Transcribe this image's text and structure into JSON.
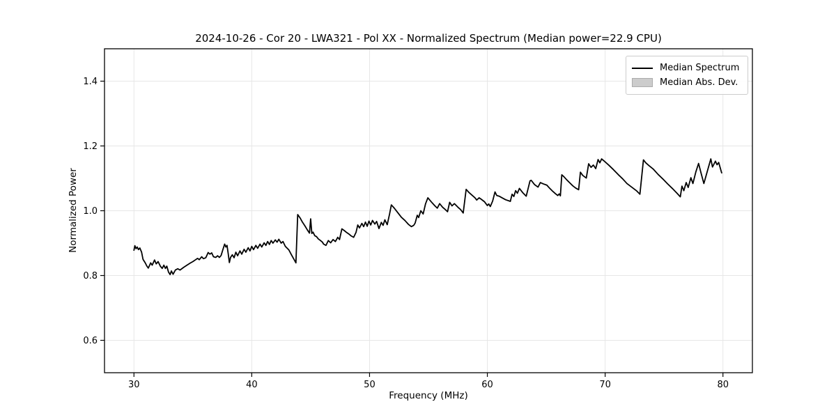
{
  "title": "2024-10-26 - Cor 20 - LWA321 - Pol XX - Normalized Spectrum (Median power=22.9 CPU)",
  "legend": {
    "items": [
      {
        "label": "Median Spectrum",
        "swatch": "line",
        "color": "#000000"
      },
      {
        "label": "Median Abs. Dev.",
        "swatch": "patch",
        "color": "#cccccc"
      }
    ]
  },
  "colors": {
    "line": "#000000",
    "grid": "#e6e6e6",
    "frame": "#000000",
    "legend_border": "#cccccc",
    "mad_fill": "#cccccc"
  },
  "chart_data": {
    "type": "line",
    "title": "2024-10-26 - Cor 20 - LWA321 - Pol XX - Normalized Spectrum (Median power=22.9 CPU)",
    "xlabel": "Frequency (MHz)",
    "ylabel": "Normalized Power",
    "xlim": [
      27.5,
      82.5
    ],
    "ylim": [
      0.5,
      1.5
    ],
    "xticks": [
      30,
      40,
      50,
      60,
      70,
      80
    ],
    "yticks": [
      0.6,
      0.8,
      1.0,
      1.2,
      1.4
    ],
    "grid": true,
    "legend_position": "upper right",
    "series": [
      {
        "name": "Median Spectrum",
        "color": "#000000",
        "x": [
          30.0,
          30.08,
          30.18,
          30.28,
          30.38,
          30.5,
          30.65,
          30.77,
          30.96,
          31.1,
          31.22,
          31.42,
          31.55,
          31.75,
          31.89,
          32.05,
          32.24,
          32.4,
          32.54,
          32.67,
          32.79,
          32.93,
          33.07,
          33.18,
          33.32,
          33.52,
          33.72,
          33.91,
          34.21,
          34.5,
          34.8,
          35.0,
          35.2,
          35.4,
          35.55,
          35.75,
          35.9,
          36.1,
          36.3,
          36.45,
          36.6,
          36.75,
          36.95,
          37.1,
          37.25,
          37.4,
          37.55,
          37.7,
          37.8,
          37.9,
          38.0,
          38.1,
          38.2,
          38.35,
          38.5,
          38.65,
          38.8,
          39.0,
          39.15,
          39.35,
          39.5,
          39.7,
          39.85,
          40.0,
          40.15,
          40.35,
          40.5,
          40.7,
          40.85,
          41.05,
          41.2,
          41.35,
          41.5,
          41.65,
          41.8,
          42.0,
          42.15,
          42.3,
          42.5,
          42.65,
          42.85,
          43.15,
          43.4,
          43.6,
          43.75,
          43.9,
          44.1,
          44.3,
          44.5,
          44.7,
          44.9,
          45.0,
          45.1,
          45.2,
          45.35,
          45.5,
          45.65,
          45.8,
          46.0,
          46.1,
          46.3,
          46.5,
          46.7,
          46.9,
          47.1,
          47.3,
          47.45,
          47.65,
          47.85,
          48.05,
          48.25,
          48.45,
          48.65,
          48.85,
          49.0,
          49.15,
          49.35,
          49.5,
          49.65,
          49.8,
          49.95,
          50.1,
          50.25,
          50.45,
          50.6,
          50.8,
          51.0,
          51.15,
          51.3,
          51.5,
          51.7,
          51.85,
          52.1,
          52.4,
          52.7,
          53.0,
          53.3,
          53.55,
          53.75,
          53.87,
          54.05,
          54.17,
          54.35,
          54.55,
          54.75,
          54.95,
          55.25,
          55.55,
          55.75,
          55.95,
          56.2,
          56.45,
          56.62,
          56.8,
          57.0,
          57.2,
          57.5,
          57.72,
          57.95,
          58.2,
          58.45,
          58.7,
          58.95,
          59.1,
          59.3,
          59.5,
          59.75,
          60.0,
          60.12,
          60.25,
          60.45,
          60.65,
          60.8,
          61.0,
          61.25,
          61.55,
          61.95,
          62.1,
          62.25,
          62.4,
          62.55,
          62.72,
          63.0,
          63.3,
          63.62,
          63.72,
          64.0,
          64.3,
          64.5,
          64.75,
          65.05,
          65.3,
          65.55,
          65.8,
          65.98,
          66.1,
          66.2,
          66.32,
          66.5,
          66.75,
          67.0,
          67.25,
          67.5,
          67.75,
          67.9,
          68.1,
          68.4,
          68.6,
          68.8,
          69.0,
          69.2,
          69.4,
          69.55,
          69.7,
          69.9,
          70.3,
          70.7,
          71.1,
          71.5,
          71.85,
          72.25,
          72.65,
          72.95,
          73.25,
          73.45,
          73.7,
          74.1,
          74.5,
          74.9,
          75.3,
          75.7,
          76.1,
          76.38,
          76.52,
          76.68,
          76.88,
          77.05,
          77.28,
          77.45,
          77.7,
          77.93,
          78.15,
          78.38,
          78.97,
          79.11,
          79.36,
          79.5,
          79.64,
          79.89
        ],
        "y": [
          0.878,
          0.892,
          0.883,
          0.888,
          0.88,
          0.885,
          0.872,
          0.85,
          0.839,
          0.829,
          0.823,
          0.839,
          0.832,
          0.848,
          0.836,
          0.843,
          0.829,
          0.822,
          0.832,
          0.822,
          0.829,
          0.811,
          0.803,
          0.814,
          0.804,
          0.817,
          0.821,
          0.817,
          0.825,
          0.832,
          0.839,
          0.843,
          0.848,
          0.853,
          0.849,
          0.858,
          0.852,
          0.855,
          0.871,
          0.866,
          0.87,
          0.858,
          0.856,
          0.861,
          0.856,
          0.862,
          0.88,
          0.897,
          0.888,
          0.893,
          0.868,
          0.84,
          0.856,
          0.864,
          0.855,
          0.872,
          0.861,
          0.876,
          0.866,
          0.881,
          0.872,
          0.886,
          0.876,
          0.89,
          0.88,
          0.893,
          0.884,
          0.897,
          0.888,
          0.901,
          0.893,
          0.905,
          0.896,
          0.908,
          0.9,
          0.91,
          0.903,
          0.912,
          0.9,
          0.905,
          0.89,
          0.879,
          0.862,
          0.849,
          0.839,
          0.988,
          0.978,
          0.965,
          0.954,
          0.942,
          0.931,
          0.975,
          0.93,
          0.934,
          0.923,
          0.92,
          0.913,
          0.909,
          0.903,
          0.897,
          0.893,
          0.908,
          0.901,
          0.911,
          0.905,
          0.918,
          0.911,
          0.944,
          0.939,
          0.933,
          0.928,
          0.922,
          0.918,
          0.933,
          0.956,
          0.947,
          0.961,
          0.951,
          0.965,
          0.952,
          0.968,
          0.956,
          0.97,
          0.959,
          0.967,
          0.945,
          0.964,
          0.955,
          0.972,
          0.957,
          0.99,
          1.018,
          1.008,
          0.994,
          0.98,
          0.97,
          0.958,
          0.951,
          0.955,
          0.962,
          0.986,
          0.979,
          1.0,
          0.99,
          1.021,
          1.04,
          1.027,
          1.015,
          1.008,
          1.022,
          1.011,
          1.003,
          0.997,
          1.026,
          1.015,
          1.022,
          1.011,
          1.004,
          0.993,
          1.066,
          1.056,
          1.048,
          1.04,
          1.033,
          1.04,
          1.035,
          1.028,
          1.016,
          1.021,
          1.013,
          1.03,
          1.058,
          1.047,
          1.045,
          1.04,
          1.034,
          1.029,
          1.051,
          1.044,
          1.062,
          1.054,
          1.069,
          1.056,
          1.045,
          1.092,
          1.094,
          1.081,
          1.073,
          1.087,
          1.083,
          1.079,
          1.069,
          1.06,
          1.052,
          1.047,
          1.052,
          1.046,
          1.111,
          1.105,
          1.095,
          1.086,
          1.077,
          1.07,
          1.065,
          1.119,
          1.109,
          1.101,
          1.145,
          1.134,
          1.141,
          1.13,
          1.158,
          1.148,
          1.16,
          1.154,
          1.141,
          1.127,
          1.112,
          1.098,
          1.084,
          1.073,
          1.062,
          1.051,
          1.157,
          1.148,
          1.14,
          1.128,
          1.112,
          1.098,
          1.083,
          1.069,
          1.054,
          1.043,
          1.076,
          1.062,
          1.087,
          1.072,
          1.102,
          1.084,
          1.12,
          1.146,
          1.115,
          1.084,
          1.16,
          1.135,
          1.153,
          1.142,
          1.149,
          1.117
        ]
      }
    ]
  }
}
